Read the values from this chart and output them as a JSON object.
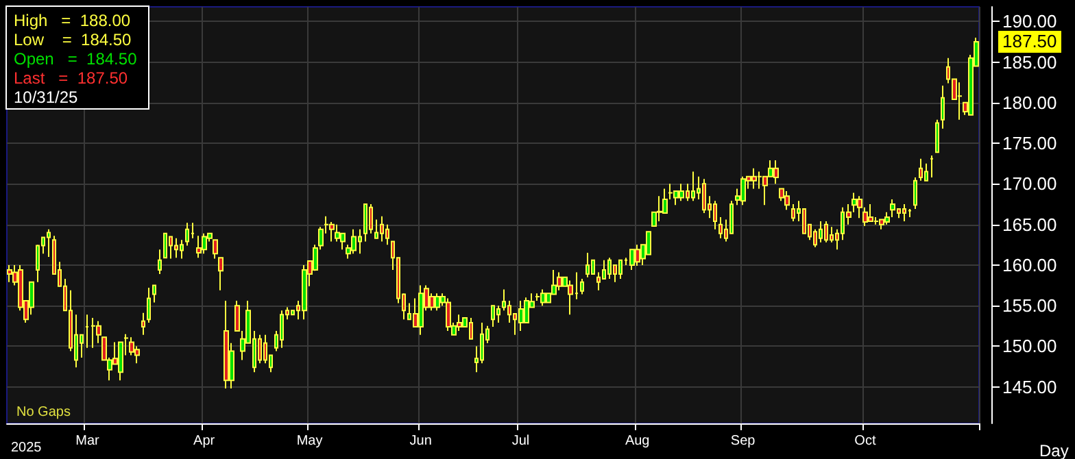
{
  "chart_data": {
    "type": "candlestick",
    "xlabel": "Day",
    "categories": [
      null,
      null,
      null,
      null,
      null,
      null,
      null,
      null,
      null,
      null,
      null,
      null,
      null,
      null,
      "Mar",
      null,
      null,
      null,
      null,
      null,
      null,
      null,
      null,
      null,
      null,
      null,
      null,
      null,
      null,
      null,
      null,
      null,
      null,
      null,
      null,
      "Apr",
      null,
      null,
      null,
      null,
      null,
      null,
      null,
      null,
      null,
      null,
      null,
      null,
      null,
      null,
      null,
      null,
      null,
      null,
      "May",
      null,
      null,
      null,
      null,
      null,
      null,
      null,
      null,
      null,
      null,
      null,
      null,
      null,
      null,
      null,
      null,
      null,
      null,
      null,
      "Jun",
      null,
      null,
      null,
      null,
      null,
      null,
      null,
      null,
      null,
      null,
      null,
      null,
      null,
      null,
      null,
      null,
      null,
      "Jul",
      null,
      null,
      null,
      null,
      null,
      null,
      null,
      null,
      null,
      null,
      null,
      null,
      null,
      null,
      null,
      null,
      null,
      null,
      null,
      null,
      "Aug",
      null,
      null,
      null,
      null,
      null,
      null,
      null,
      null,
      null,
      null,
      null,
      null,
      null,
      null,
      null,
      null,
      null,
      null,
      "Sep",
      null,
      null,
      null,
      null,
      null,
      null,
      null,
      null,
      null,
      null,
      null,
      null,
      null,
      null,
      null,
      null,
      null,
      null,
      null,
      null,
      null,
      "Oct",
      null,
      null,
      null,
      null,
      null,
      null,
      null,
      null,
      null,
      null,
      null,
      null,
      null,
      null,
      null,
      null,
      null,
      null,
      null,
      null
    ],
    "ohlc": [
      [
        159.4,
        160.0,
        157.9,
        158.9
      ],
      [
        159.1,
        160.0,
        157.5,
        157.9
      ],
      [
        159.4,
        160.0,
        154.4,
        154.8
      ],
      [
        155.6,
        155.6,
        152.9,
        153.3
      ],
      [
        154.8,
        157.9,
        153.9,
        157.9
      ],
      [
        159.4,
        162.5,
        157.9,
        162.4
      ],
      [
        162.4,
        163.4,
        161.4,
        163.4
      ],
      [
        163.4,
        164.4,
        161.0,
        164.0
      ],
      [
        163.1,
        163.6,
        158.9,
        158.9
      ],
      [
        159.4,
        160.4,
        157.4,
        157.4
      ],
      [
        157.4,
        158.3,
        154.4,
        154.4
      ],
      [
        154.4,
        156.9,
        149.4,
        149.8
      ],
      [
        148.3,
        153.9,
        147.4,
        151.4
      ],
      [
        150.4,
        151.4,
        148.6,
        151.4
      ],
      [
        152.4,
        153.9,
        149.8,
        152.4
      ],
      [
        152.5,
        153.5,
        149.8,
        152.5
      ],
      [
        152.5,
        153.1,
        150.4,
        151.4
      ],
      [
        151.1,
        151.1,
        148.3,
        148.3
      ],
      [
        147.1,
        148.6,
        145.8,
        148.3
      ],
      [
        148.5,
        150.5,
        147.8,
        147.8
      ],
      [
        146.8,
        150.5,
        145.8,
        150.5
      ],
      [
        151.0,
        151.5,
        148.9,
        151.0
      ],
      [
        150.5,
        151.1,
        148.9,
        149.3
      ],
      [
        149.6,
        150.0,
        147.9,
        148.9
      ],
      [
        153.1,
        154.1,
        151.4,
        152.4
      ],
      [
        153.3,
        157.2,
        152.9,
        155.9
      ],
      [
        156.4,
        157.5,
        155.4,
        157.5
      ],
      [
        159.4,
        161.9,
        158.9,
        160.6
      ],
      [
        160.9,
        163.9,
        160.9,
        163.9
      ],
      [
        163.5,
        163.5,
        160.8,
        162.4
      ],
      [
        162.4,
        163.3,
        160.9,
        161.9
      ],
      [
        161.8,
        163.1,
        160.8,
        162.5
      ],
      [
        162.9,
        165.2,
        162.4,
        164.4
      ],
      [
        163.9,
        165.2,
        163.3,
        163.9
      ],
      [
        162.1,
        163.6,
        160.9,
        161.5
      ],
      [
        161.9,
        163.9,
        161.4,
        163.5
      ],
      [
        163.3,
        163.9,
        162.9,
        163.9
      ],
      [
        163.1,
        163.1,
        160.8,
        161.4
      ],
      [
        160.9,
        160.9,
        156.9,
        159.3
      ],
      [
        151.9,
        155.6,
        144.8,
        145.8
      ],
      [
        145.8,
        150.4,
        144.8,
        149.4
      ],
      [
        155.0,
        155.6,
        151.9,
        151.9
      ],
      [
        149.4,
        151.9,
        148.3,
        150.9
      ],
      [
        150.4,
        155.6,
        150.4,
        154.4
      ],
      [
        147.4,
        151.9,
        146.8,
        150.9
      ],
      [
        150.9,
        151.4,
        147.9,
        148.3
      ],
      [
        150.4,
        151.4,
        147.9,
        148.3
      ],
      [
        147.4,
        148.9,
        146.8,
        148.9
      ],
      [
        149.8,
        151.9,
        149.4,
        151.4
      ],
      [
        150.8,
        154.4,
        149.8,
        153.9
      ],
      [
        154.4,
        154.8,
        153.3,
        153.9
      ],
      [
        153.9,
        154.4,
        153.9,
        154.4
      ],
      [
        155.0,
        155.6,
        153.3,
        154.4
      ],
      [
        154.4,
        160.0,
        153.3,
        159.4
      ],
      [
        160.5,
        160.5,
        157.4,
        158.9
      ],
      [
        159.4,
        162.5,
        159.3,
        162.1
      ],
      [
        162.4,
        164.7,
        161.9,
        164.4
      ],
      [
        165.0,
        166.0,
        163.9,
        165.0
      ],
      [
        165.0,
        165.3,
        162.9,
        164.4
      ],
      [
        163.3,
        165.0,
        162.9,
        164.0
      ],
      [
        162.9,
        163.9,
        161.9,
        163.9
      ],
      [
        161.4,
        162.5,
        160.8,
        162.1
      ],
      [
        161.8,
        164.4,
        161.4,
        163.5
      ],
      [
        162.9,
        164.4,
        161.4,
        163.5
      ],
      [
        163.9,
        167.5,
        162.9,
        167.5
      ],
      [
        167.1,
        167.5,
        163.9,
        164.4
      ],
      [
        163.3,
        165.6,
        163.3,
        164.0
      ],
      [
        165.0,
        166.0,
        162.9,
        163.9
      ],
      [
        164.4,
        165.0,
        162.5,
        163.3
      ],
      [
        162.9,
        162.9,
        159.4,
        160.9
      ],
      [
        160.9,
        160.9,
        155.3,
        155.9
      ],
      [
        156.4,
        156.5,
        153.3,
        154.4
      ],
      [
        153.3,
        155.3,
        153.3,
        154.0
      ],
      [
        154.0,
        155.9,
        152.4,
        152.4
      ],
      [
        152.4,
        157.5,
        151.4,
        156.5
      ],
      [
        157.1,
        157.5,
        154.4,
        154.8
      ],
      [
        156.1,
        156.5,
        154.4,
        154.8
      ],
      [
        154.8,
        156.5,
        154.4,
        156.1
      ],
      [
        155.4,
        156.5,
        155.0,
        156.1
      ],
      [
        155.4,
        155.9,
        151.9,
        152.4
      ],
      [
        151.4,
        152.9,
        151.4,
        152.5
      ],
      [
        152.9,
        153.9,
        151.9,
        152.4
      ],
      [
        152.4,
        153.5,
        152.4,
        153.5
      ],
      [
        152.9,
        153.5,
        150.9,
        150.9
      ],
      [
        148.0,
        150.0,
        146.8,
        148.5
      ],
      [
        148.3,
        152.9,
        147.9,
        151.5
      ],
      [
        150.8,
        152.5,
        150.4,
        152.1
      ],
      [
        153.3,
        155.0,
        152.4,
        155.0
      ],
      [
        153.9,
        155.0,
        152.9,
        154.6
      ],
      [
        154.8,
        157.0,
        154.4,
        155.5
      ],
      [
        155.0,
        155.6,
        152.9,
        153.9
      ],
      [
        154.0,
        154.0,
        151.4,
        153.3
      ],
      [
        152.9,
        155.6,
        151.9,
        154.6
      ],
      [
        152.9,
        156.0,
        152.9,
        155.6
      ],
      [
        154.8,
        156.5,
        154.8,
        155.5
      ],
      [
        156.1,
        156.5,
        155.6,
        156.1
      ],
      [
        155.4,
        157.0,
        155.0,
        156.5
      ],
      [
        155.4,
        156.5,
        155.4,
        156.5
      ],
      [
        156.4,
        159.4,
        156.4,
        157.5
      ],
      [
        158.5,
        159.1,
        156.9,
        157.4
      ],
      [
        157.4,
        158.5,
        157.4,
        158.5
      ],
      [
        157.5,
        158.1,
        153.9,
        156.4
      ],
      [
        156.5,
        159.1,
        155.8,
        156.5
      ],
      [
        156.8,
        158.3,
        156.4,
        157.9
      ],
      [
        158.9,
        161.5,
        158.5,
        160.0
      ],
      [
        158.9,
        160.6,
        158.9,
        160.6
      ],
      [
        158.5,
        159.1,
        156.9,
        157.9
      ],
      [
        158.3,
        160.6,
        158.3,
        159.4
      ],
      [
        158.9,
        160.9,
        158.3,
        160.6
      ],
      [
        160.0,
        160.0,
        157.9,
        158.9
      ],
      [
        158.9,
        160.6,
        158.3,
        160.6
      ],
      [
        160.6,
        160.9,
        160.0,
        160.6
      ],
      [
        160.0,
        161.9,
        159.4,
        161.9
      ],
      [
        161.9,
        162.5,
        159.9,
        160.4
      ],
      [
        160.8,
        162.5,
        160.0,
        162.5
      ],
      [
        161.3,
        164.1,
        161.3,
        164.1
      ],
      [
        164.8,
        166.5,
        164.8,
        166.5
      ],
      [
        166.6,
        168.5,
        165.4,
        166.5
      ],
      [
        166.4,
        169.4,
        166.4,
        168.1
      ],
      [
        168.9,
        170.0,
        168.1,
        168.9
      ],
      [
        168.3,
        169.1,
        167.4,
        169.1
      ],
      [
        168.3,
        170.0,
        167.9,
        169.1
      ],
      [
        169.1,
        170.0,
        167.9,
        168.3
      ],
      [
        168.3,
        171.5,
        167.9,
        169.1
      ],
      [
        168.9,
        170.9,
        168.1,
        169.4
      ],
      [
        170.0,
        170.6,
        166.4,
        166.8
      ],
      [
        167.5,
        168.5,
        165.8,
        166.8
      ],
      [
        167.5,
        167.9,
        164.4,
        165.4
      ],
      [
        165.0,
        165.9,
        163.3,
        163.9
      ],
      [
        164.4,
        165.6,
        162.9,
        163.3
      ],
      [
        163.9,
        167.9,
        163.9,
        167.5
      ],
      [
        168.0,
        169.4,
        167.4,
        168.5
      ],
      [
        167.9,
        170.9,
        167.4,
        170.6
      ],
      [
        170.9,
        170.9,
        169.4,
        170.4
      ],
      [
        170.9,
        171.9,
        169.4,
        170.4
      ],
      [
        170.9,
        171.5,
        169.4,
        170.9
      ],
      [
        170.9,
        170.9,
        167.4,
        169.8
      ],
      [
        170.9,
        172.9,
        170.9,
        171.9
      ],
      [
        171.9,
        172.9,
        170.0,
        170.8
      ],
      [
        169.4,
        169.4,
        167.9,
        168.3
      ],
      [
        168.5,
        169.1,
        166.8,
        167.4
      ],
      [
        166.9,
        167.5,
        165.4,
        165.8
      ],
      [
        166.4,
        167.9,
        165.4,
        166.9
      ],
      [
        166.9,
        166.9,
        163.9,
        163.9
      ],
      [
        165.0,
        165.0,
        163.1,
        163.5
      ],
      [
        164.1,
        164.4,
        162.2,
        162.5
      ],
      [
        163.3,
        165.4,
        162.8,
        164.4
      ],
      [
        165.0,
        165.4,
        162.8,
        163.1
      ],
      [
        163.7,
        164.7,
        162.8,
        163.1
      ],
      [
        163.9,
        164.4,
        161.9,
        163.1
      ],
      [
        163.9,
        167.1,
        163.1,
        166.5
      ],
      [
        166.5,
        167.5,
        165.0,
        165.9
      ],
      [
        167.4,
        168.9,
        166.5,
        168.1
      ],
      [
        168.1,
        168.5,
        165.8,
        167.1
      ],
      [
        166.5,
        167.1,
        164.8,
        165.3
      ],
      [
        165.9,
        167.5,
        165.4,
        165.4
      ],
      [
        165.4,
        165.9,
        165.0,
        165.4
      ],
      [
        165.6,
        165.6,
        164.4,
        165.0
      ],
      [
        165.3,
        166.5,
        165.0,
        165.9
      ],
      [
        166.8,
        168.1,
        165.9,
        167.5
      ],
      [
        166.9,
        166.9,
        165.8,
        166.4
      ],
      [
        166.9,
        167.5,
        165.4,
        166.4
      ],
      [
        166.7,
        166.9,
        165.9,
        166.7
      ],
      [
        167.4,
        170.8,
        166.9,
        170.4
      ],
      [
        171.9,
        173.1,
        170.4,
        170.8
      ],
      [
        170.4,
        172.5,
        170.4,
        171.5
      ],
      [
        173.1,
        173.5,
        170.8,
        173.1
      ],
      [
        173.9,
        177.9,
        173.9,
        177.5
      ],
      [
        177.9,
        182.1,
        176.8,
        180.6
      ],
      [
        184.4,
        185.5,
        182.4,
        182.9
      ],
      [
        182.9,
        182.9,
        180.4,
        180.4
      ],
      [
        180.8,
        182.5,
        177.9,
        180.8
      ],
      [
        180.0,
        180.0,
        178.5,
        178.9
      ],
      [
        178.5,
        185.9,
        178.5,
        185.5
      ],
      [
        184.5,
        188.0,
        184.5,
        187.5
      ]
    ],
    "ylim": [
      140.5,
      191.8
    ],
    "yticks": [
      {
        "value": 145,
        "label": "145.00"
      },
      {
        "value": 150,
        "label": "150.00"
      },
      {
        "value": 155,
        "label": "155.00"
      },
      {
        "value": 160,
        "label": "160.00"
      },
      {
        "value": 165,
        "label": "165.00"
      },
      {
        "value": 170,
        "label": "170.00"
      },
      {
        "value": 175,
        "label": "175.00"
      },
      {
        "value": 180,
        "label": "180.00"
      },
      {
        "value": 185,
        "label": "185.00"
      },
      {
        "value": 190,
        "label": "190.00"
      }
    ],
    "grid": true,
    "annotations": [
      "High   =  188.00",
      "Low    =  184.50",
      "Open   =  184.50",
      "Last   =  187.50",
      "10/31/25",
      "No Gaps",
      "2025",
      "187.50"
    ]
  }
}
